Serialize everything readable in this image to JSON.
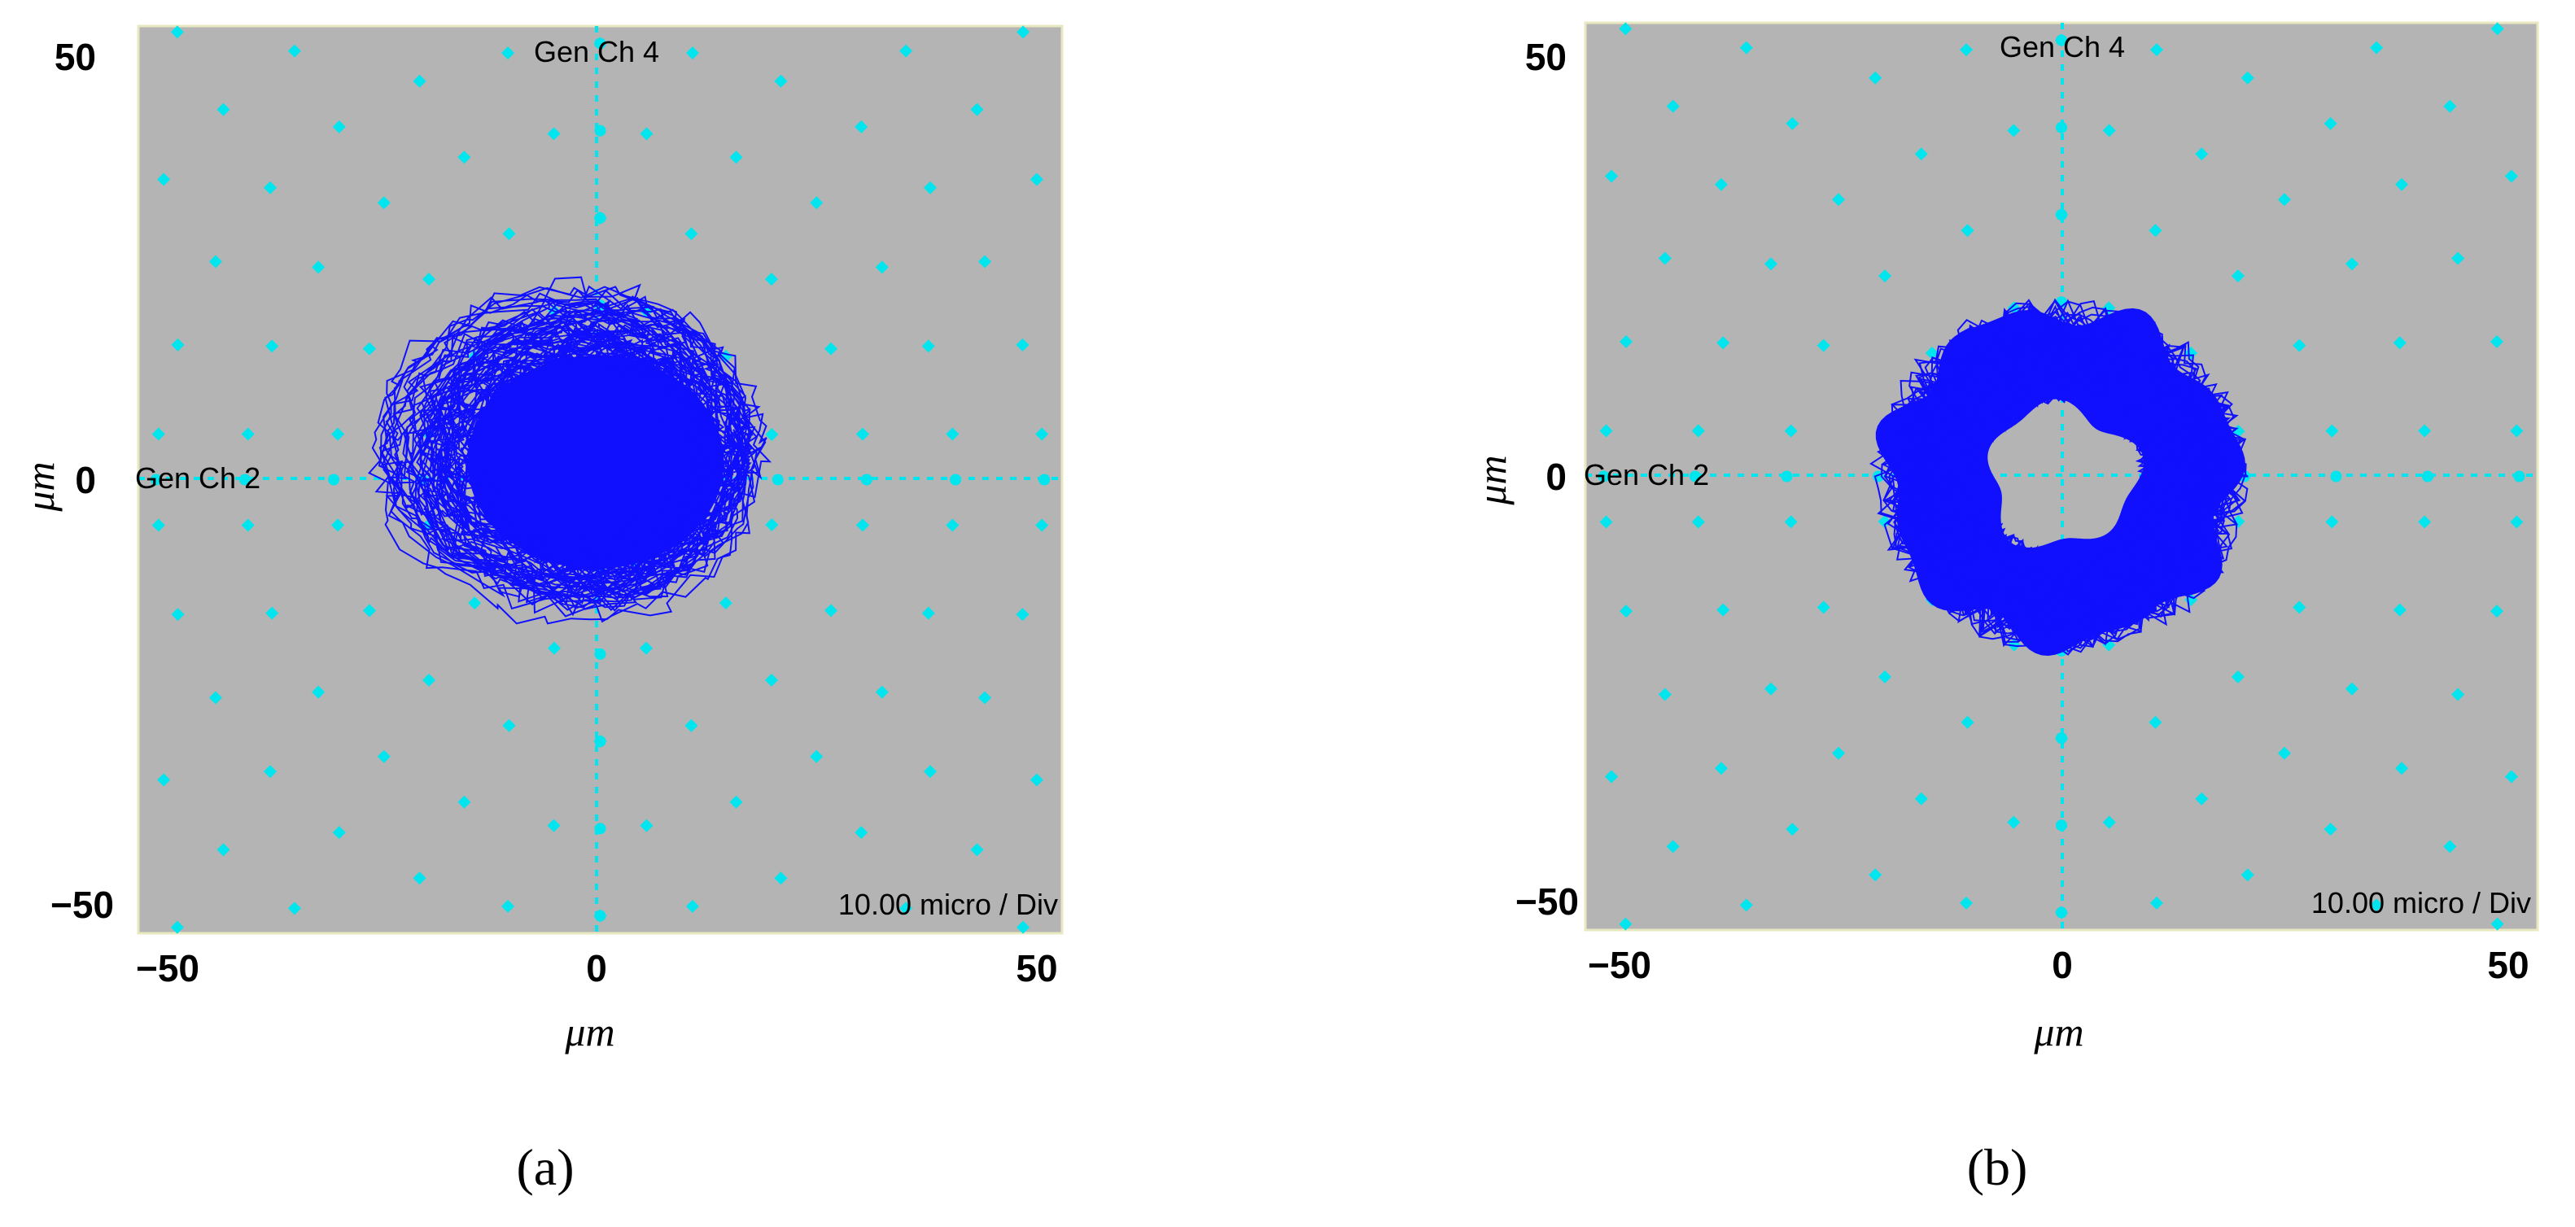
{
  "colors": {
    "plot_bg": "#b4b4b4",
    "grid": "#00e5ee",
    "orbit": "#1010ff"
  },
  "chart_data": [
    {
      "type": "scatter",
      "panel": "(a)",
      "xlabel": "μm",
      "ylabel": "μm",
      "xlim": [
        -52,
        52
      ],
      "ylim": [
        -52,
        52
      ],
      "xticks": [
        "−50",
        "0",
        "50"
      ],
      "yticks": [
        "50",
        "0",
        "−50"
      ],
      "top_channel_label": "Gen Ch  4",
      "left_channel_label": "Gen Ch  2",
      "scale_label": "10.00 micro / Div",
      "orbit_shape": "irregular",
      "orbit_center": [
        0,
        0
      ],
      "orbit_extent": {
        "x": [
          -20,
          17
        ],
        "y": [
          -14,
          20
        ]
      }
    },
    {
      "type": "scatter",
      "panel": "(b)",
      "xlabel": "μm",
      "ylabel": "μm",
      "xlim": [
        -52,
        52
      ],
      "ylim": [
        -52,
        52
      ],
      "xticks": [
        "−50",
        "0",
        "50"
      ],
      "yticks": [
        "50",
        "0",
        "−50"
      ],
      "top_channel_label": "Gen Ch  4",
      "left_channel_label": "Gen Ch  2",
      "scale_label": "10.00 micro / Div",
      "orbit_shape": "annulus",
      "orbit_center": [
        0,
        0
      ],
      "orbit_outer_radius": 19,
      "orbit_inner_radius": 8
    }
  ]
}
